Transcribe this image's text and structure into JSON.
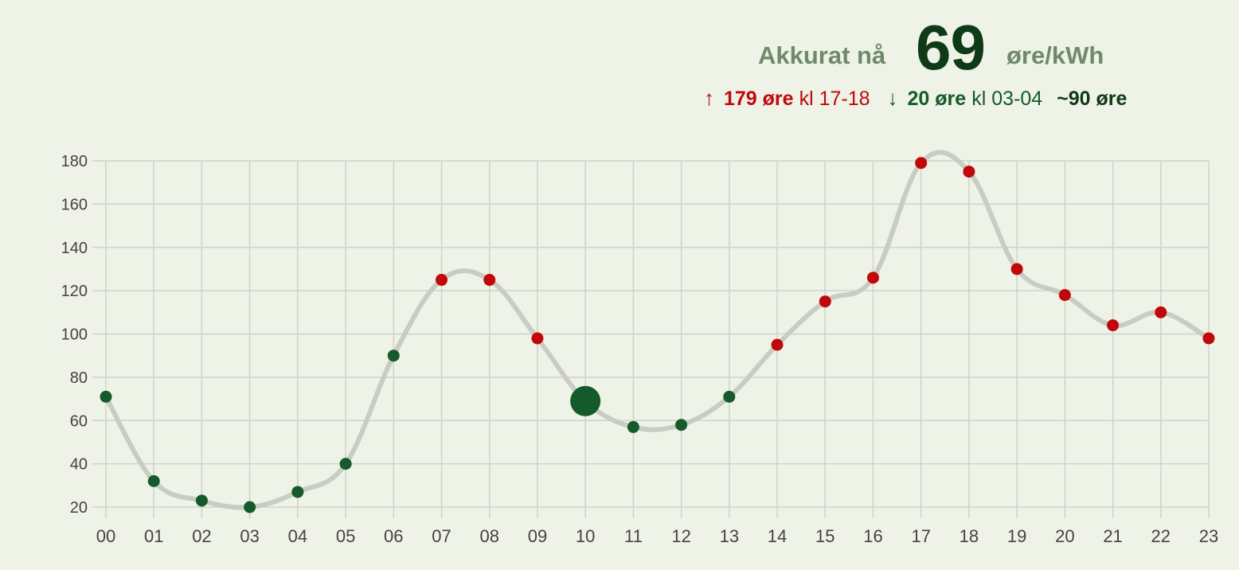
{
  "header": {
    "now_label": "Akkurat nå",
    "now_value": "69",
    "now_unit": "øre/kWh",
    "max": {
      "arrow": "↑",
      "value": "179 øre",
      "time": "kl 17-18"
    },
    "min": {
      "arrow": "↓",
      "value": "20 øre",
      "time": "kl 03-04"
    },
    "avg": "~90 øre"
  },
  "colors": {
    "background": "#eef2e7",
    "high": "#c0080c",
    "low": "#155a2a",
    "line": "#c9ccc3",
    "grid": "#cfd3c9"
  },
  "chart_data": {
    "type": "line",
    "categories": [
      "00",
      "01",
      "02",
      "03",
      "04",
      "05",
      "06",
      "07",
      "08",
      "09",
      "10",
      "11",
      "12",
      "13",
      "14",
      "15",
      "16",
      "17",
      "18",
      "19",
      "20",
      "21",
      "22",
      "23"
    ],
    "series": [
      {
        "values": [
          71,
          32,
          23,
          20,
          27,
          40,
          90,
          125,
          125,
          98,
          69,
          57,
          58,
          71,
          95,
          115,
          126,
          179,
          175,
          130,
          118,
          104,
          110,
          98
        ]
      }
    ],
    "current_index": 10,
    "threshold": 90,
    "ylim": [
      20,
      180
    ],
    "yticks": [
      20,
      40,
      60,
      80,
      100,
      120,
      140,
      160,
      180
    ],
    "grid": true,
    "xlabel": "",
    "ylabel": "",
    "title": ""
  }
}
